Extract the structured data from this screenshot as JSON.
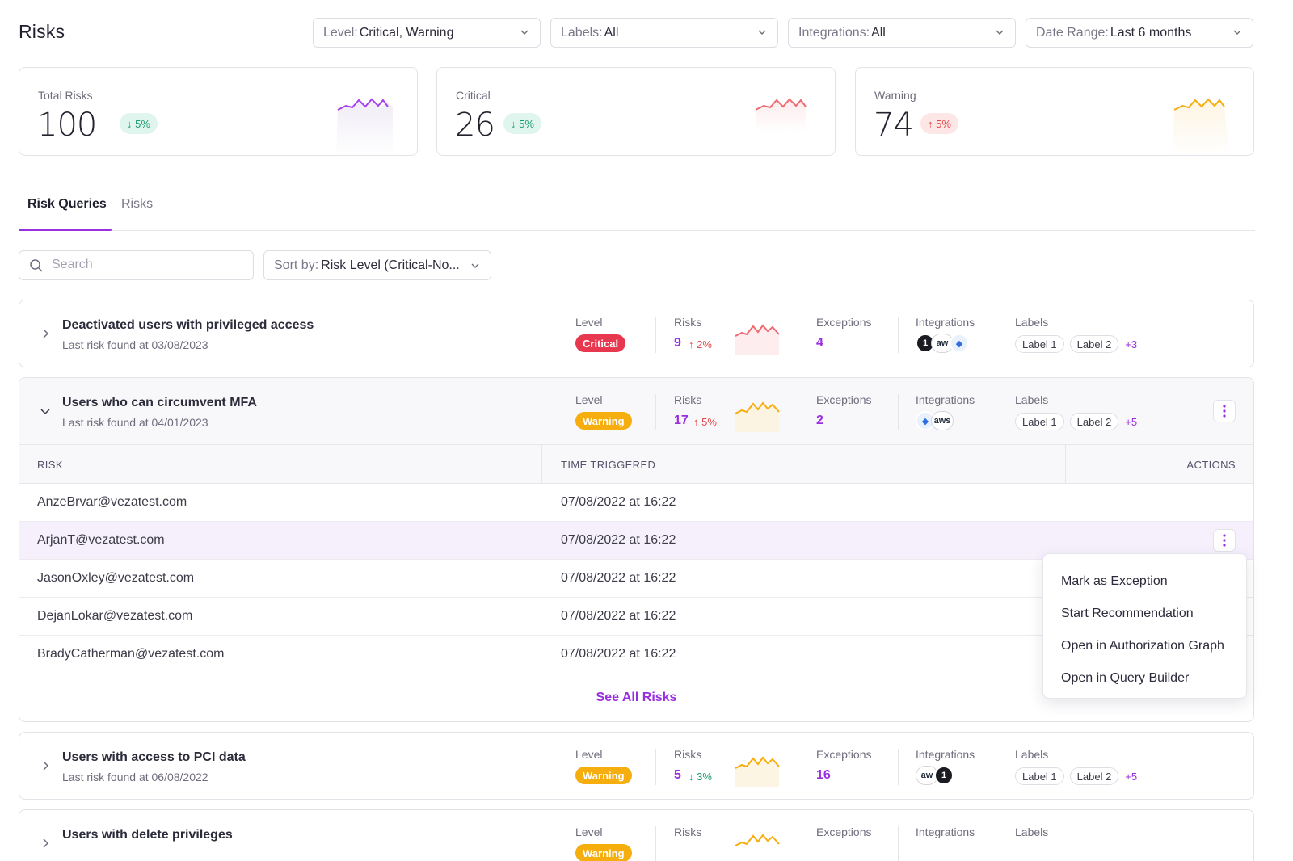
{
  "header": {
    "title": "Risks",
    "filters": [
      {
        "label": "Level:",
        "value": "Critical, Warning"
      },
      {
        "label": "Labels:",
        "value": "All"
      },
      {
        "label": "Integrations:",
        "value": "All"
      },
      {
        "label": "Date Range:",
        "value": "Last 6 months"
      }
    ]
  },
  "stats": [
    {
      "label": "Total Risks",
      "value": "100",
      "delta": "↓ 5%",
      "direction": "down",
      "spark_color": "#a83ff0"
    },
    {
      "label": "Critical",
      "value": "26",
      "delta": "↓ 5%",
      "direction": "down",
      "spark_color": "#f06a72"
    },
    {
      "label": "Warning",
      "value": "74",
      "delta": "↑ 5%",
      "direction": "up",
      "spark_color": "#f6ad0e"
    }
  ],
  "tabs": [
    {
      "label": "Risk Queries",
      "active": true
    },
    {
      "label": "Risks",
      "active": false
    }
  ],
  "search": {
    "placeholder": "Search"
  },
  "sort": {
    "label": "Sort by:",
    "value": "Risk Level (Critical-No..."
  },
  "columns": {
    "level": "Level",
    "risks": "Risks",
    "exceptions": "Exceptions",
    "integrations": "Integrations",
    "labels": "Labels"
  },
  "queries": [
    {
      "title": "Deactivated users with privileged access",
      "subtitle": "Last risk found at 03/08/2023",
      "level": "Critical",
      "risks": "9",
      "risk_delta": "↑ 2%",
      "exceptions": "4",
      "integrations": [
        "onelogin",
        "aws",
        "jira"
      ],
      "labels": [
        "Label 1",
        "Label 2"
      ],
      "more_labels": "+3"
    },
    {
      "title": "Users who can circumvent MFA",
      "subtitle": "Last risk found at 04/01/2023",
      "level": "Warning",
      "risks": "17",
      "risk_delta": "↑ 5%",
      "exceptions": "2",
      "integrations": [
        "jira",
        "aws"
      ],
      "labels": [
        "Label 1",
        "Label 2"
      ],
      "more_labels": "+5"
    },
    {
      "title": "Users with access to PCI data",
      "subtitle": "Last risk found at 06/08/2022",
      "level": "Warning",
      "risks": "5",
      "risk_delta": "↓ 3%",
      "exceptions": "16",
      "integrations": [
        "aws",
        "onelogin"
      ],
      "labels": [
        "Label 1",
        "Label 2"
      ],
      "more_labels": "+5"
    },
    {
      "title": "Users with delete privileges",
      "subtitle": "",
      "level": "Warning",
      "risks": "",
      "risk_delta": "",
      "exceptions": "",
      "integrations": [],
      "labels": [],
      "more_labels": ""
    }
  ],
  "risk_table": {
    "headers": [
      "RISK",
      "TIME TRIGGERED",
      "ACTIONS"
    ],
    "rows": [
      {
        "risk": "AnzeBrvar@vezatest.com",
        "time": "07/08/2022 at 16:22"
      },
      {
        "risk": "ArjanT@vezatest.com",
        "time": "07/08/2022 at 16:22"
      },
      {
        "risk": "JasonOxley@vezatest.com",
        "time": "07/08/2022 at 16:22"
      },
      {
        "risk": "DejanLokar@vezatest.com",
        "time": "07/08/2022 at 16:22"
      },
      {
        "risk": "BradyCatherman@vezatest.com",
        "time": "07/08/2022 at 16:22"
      }
    ],
    "see_all": "See All Risks"
  },
  "icons": {
    "onelogin": "1",
    "aws": "aws",
    "aws_short": "aw",
    "jira": "◆"
  },
  "action_menu": {
    "items": [
      "Mark as Exception",
      "Start Recommendation",
      "Open in Authorization Graph",
      "Open in Query Builder"
    ]
  },
  "colors": {
    "accent": "#9a2fe0",
    "critical": "#e8384f",
    "warning": "#f6ad0e",
    "positive": "#1a9b70",
    "negative": "#e0484a"
  }
}
